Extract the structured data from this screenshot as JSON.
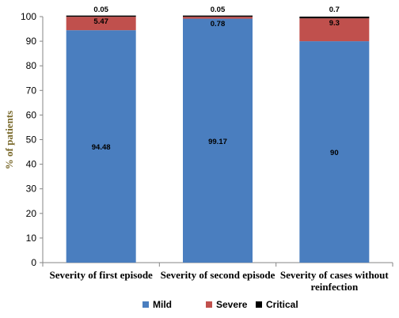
{
  "chart_data": {
    "type": "bar",
    "stacked": true,
    "categories": [
      [
        "Severity of first episode"
      ],
      [
        "Severity of second episode"
      ],
      [
        "Severity of cases without",
        "reinfection"
      ]
    ],
    "series": [
      {
        "name": "Mild",
        "color": "#4a7ebf",
        "values": [
          94.48,
          99.17,
          90
        ],
        "labels": [
          "94.48",
          "99.17",
          "90"
        ]
      },
      {
        "name": "Severe",
        "color": "#c0504d",
        "values": [
          5.47,
          0.78,
          9.3
        ],
        "labels": [
          "5.47",
          "0.78",
          "9.3"
        ]
      },
      {
        "name": "Critical",
        "color": "#000000",
        "values": [
          0.05,
          0.05,
          0.7
        ],
        "labels": [
          "0.05",
          "0.05",
          "0.7"
        ]
      }
    ],
    "title": "",
    "xlabel": "",
    "ylabel": "% of patients",
    "ylim": [
      0,
      100
    ],
    "yticks": [
      0,
      10,
      20,
      30,
      40,
      50,
      60,
      70,
      80,
      90,
      100
    ],
    "grid": false,
    "legend": "bottom"
  }
}
